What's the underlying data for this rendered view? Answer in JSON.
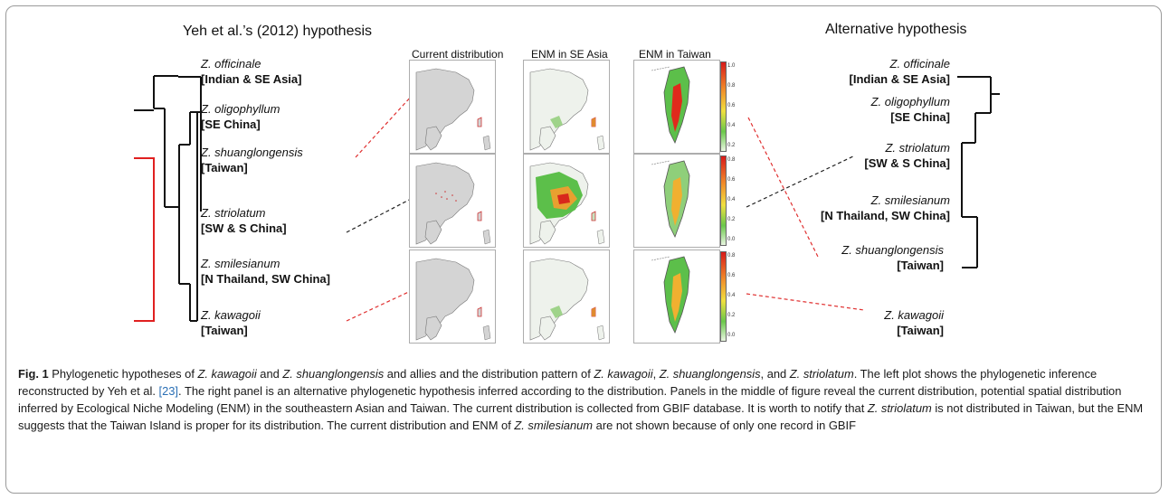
{
  "left_tree": {
    "title": "Yeh et al.’s (2012) hypothesis",
    "taxa": [
      {
        "species": "Z. officinale",
        "region": "[Indian & SE Asia]"
      },
      {
        "species": "Z. oligophyllum",
        "region": "[SE China]"
      },
      {
        "species": "Z. shuanglongensis",
        "region": "[Taiwan]"
      },
      {
        "species": "Z. striolatum",
        "region": "[SW & S China]"
      },
      {
        "species": "Z. smilesianum",
        "region": "[N Thailand, SW China]"
      },
      {
        "species": "Z. kawagoii",
        "region": "[Taiwan]"
      }
    ]
  },
  "right_tree": {
    "title": "Alternative hypothesis",
    "taxa": [
      {
        "species": "Z. officinale",
        "region": "[Indian & SE Asia]"
      },
      {
        "species": "Z. oligophyllum",
        "region": "[SE China]"
      },
      {
        "species": "Z. striolatum",
        "region": "[SW & S China]"
      },
      {
        "species": "Z. smilesianum",
        "region": "[N Thailand, SW China]"
      },
      {
        "species": "Z. shuanglongensis",
        "region": "[Taiwan]"
      },
      {
        "species": "Z. kawagoii",
        "region": "[Taiwan]"
      }
    ]
  },
  "panel_headers": {
    "current": "Current distribution",
    "enm_asia": "ENM in SE Asia",
    "enm_taiwan": "ENM in Taiwan"
  },
  "scales": [
    {
      "ticks": [
        "1.0",
        "0.8",
        "0.6",
        "0.4",
        "0.2"
      ]
    },
    {
      "ticks": [
        "0.8",
        "0.6",
        "0.4",
        "0.2",
        "0.0"
      ]
    },
    {
      "ticks": [
        "0.8",
        "0.6",
        "0.4",
        "0.2",
        "0.0"
      ]
    }
  ],
  "colors": {
    "red_branch": "#e02020",
    "dashed_red": "#e03030",
    "dashed_black": "#222222",
    "map_land": "#d4d4d4",
    "link_blue": "#2a6fb5"
  },
  "caption": {
    "label": "Fig. 1",
    "t1": " Phylogenetic hypotheses of ",
    "i1": "Z. kawagoii",
    "t2": " and ",
    "i2": "Z. shuanglongensis",
    "t3": " and allies and the distribution pattern of ",
    "i3": "Z. kawagoii",
    "t4": ", ",
    "i4": "Z. shuanglongensis",
    "t5": ", and ",
    "i5": "Z. striolatum",
    "t6": ". The left plot shows the phylogenetic inference reconstructed by Yeh et al. ",
    "ref": "[23]",
    "t7": ". The right panel is an alternative phylogenetic hypothesis inferred according to the distribution. Panels in the middle of figure reveal the current distribution, potential spatial distribution inferred by Ecological Niche Modeling (ENM) in the southeastern Asian and Taiwan. The current distribution is collected from GBIF database. It is worth to notify that ",
    "i6": "Z. striolatum",
    "t8": " is not distributed in Taiwan, but the ENM suggests that the Taiwan Island is proper for its distribution. The current distribution and ENM of ",
    "i7": "Z. smilesianum",
    "t9": " are not shown because of only one record in GBIF"
  }
}
